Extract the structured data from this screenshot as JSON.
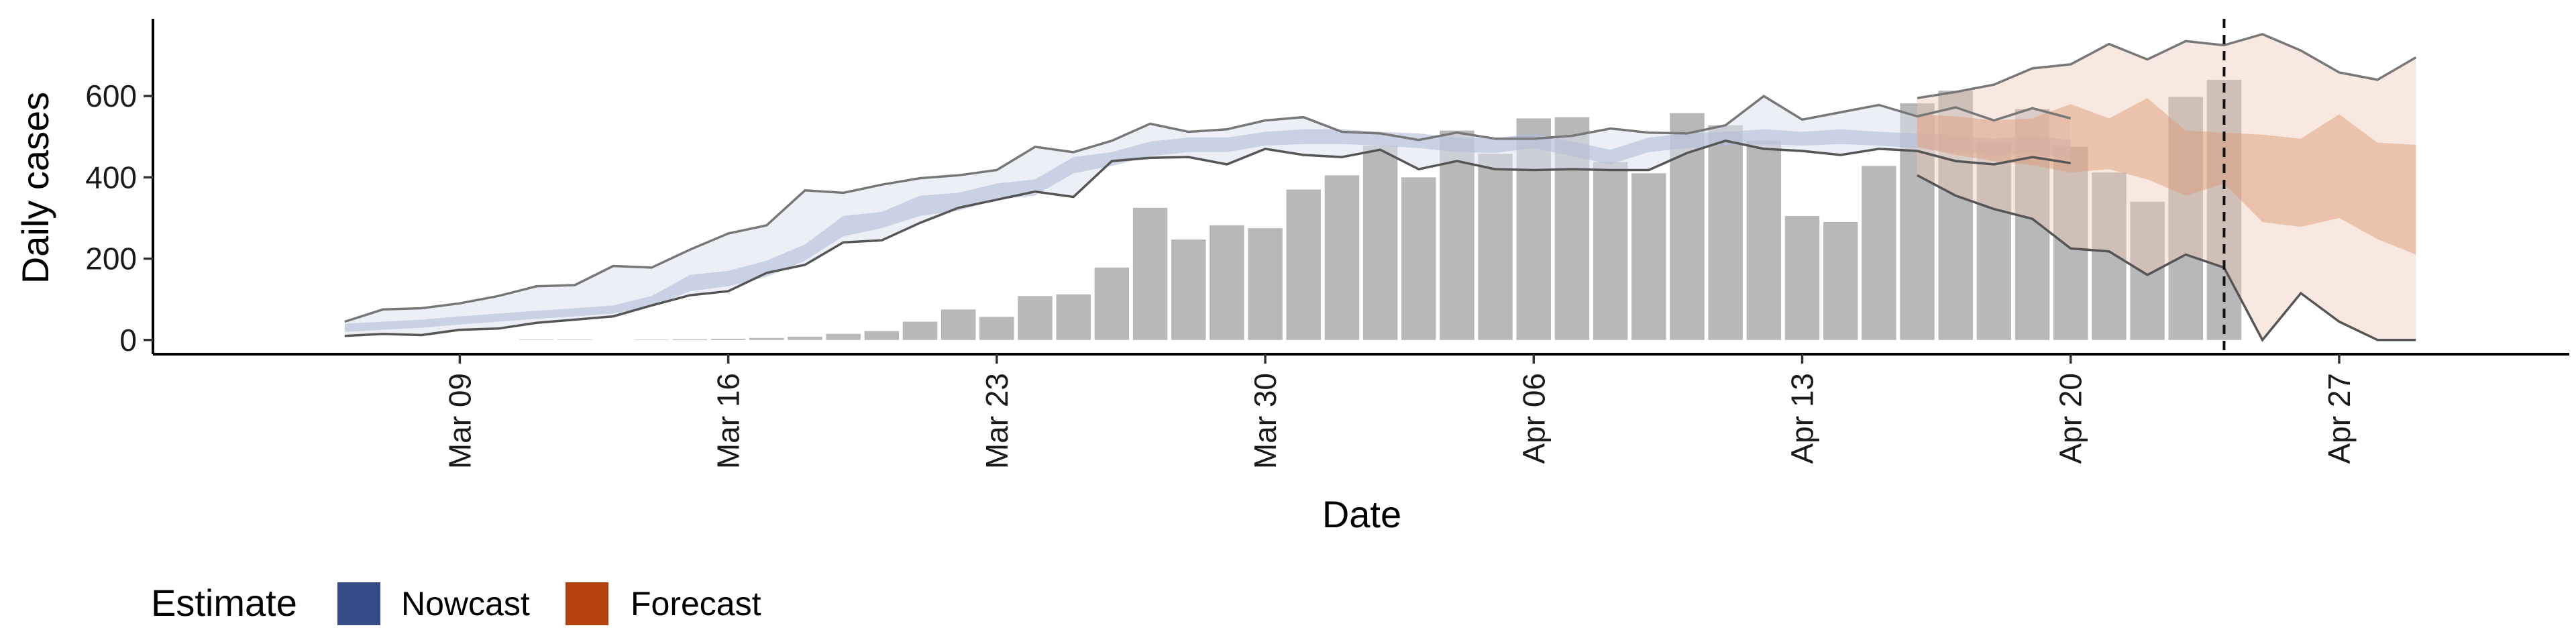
{
  "chart_data": {
    "type": "bar",
    "xlabel": "Date",
    "ylabel": "Daily cases",
    "ylim": [
      -35,
      790
    ],
    "yticks": [
      0,
      200,
      400,
      600
    ],
    "xlim": [
      "2020-03-01",
      "2020-05-03"
    ],
    "xticks": [
      {
        "date": "2020-03-09",
        "label": "Mar 09"
      },
      {
        "date": "2020-03-16",
        "label": "Mar 16"
      },
      {
        "date": "2020-03-23",
        "label": "Mar 23"
      },
      {
        "date": "2020-03-30",
        "label": "Mar 30"
      },
      {
        "date": "2020-04-06",
        "label": "Apr 06"
      },
      {
        "date": "2020-04-13",
        "label": "Apr 13"
      },
      {
        "date": "2020-04-20",
        "label": "Apr 20"
      },
      {
        "date": "2020-04-27",
        "label": "Apr 27"
      }
    ],
    "grid": false,
    "legend": {
      "position": "bottom-left",
      "title": "Estimate",
      "entries": [
        {
          "name": "Nowcast",
          "color": "#344b85"
        },
        {
          "name": "Forecast",
          "color": "#b5410e"
        }
      ]
    },
    "reported_cases": {
      "dates": [
        "2020-03-11",
        "2020-03-12",
        "2020-03-14",
        "2020-03-15",
        "2020-03-16",
        "2020-03-17",
        "2020-03-18",
        "2020-03-19",
        "2020-03-20",
        "2020-03-21",
        "2020-03-22",
        "2020-03-23",
        "2020-03-24",
        "2020-03-25",
        "2020-03-26",
        "2020-03-27",
        "2020-03-28",
        "2020-03-29",
        "2020-03-30",
        "2020-03-31",
        "2020-04-01",
        "2020-04-02",
        "2020-04-03",
        "2020-04-04",
        "2020-04-05",
        "2020-04-06",
        "2020-04-07",
        "2020-04-08",
        "2020-04-09",
        "2020-04-10",
        "2020-04-11",
        "2020-04-12",
        "2020-04-13",
        "2020-04-14",
        "2020-04-15",
        "2020-04-16",
        "2020-04-17",
        "2020-04-18",
        "2020-04-19",
        "2020-04-20",
        "2020-04-21",
        "2020-04-22",
        "2020-04-23",
        "2020-04-24"
      ],
      "values": [
        1,
        1,
        1,
        2,
        3,
        5,
        8,
        15,
        22,
        45,
        75,
        57,
        108,
        112,
        178,
        325,
        247,
        282,
        275,
        370,
        405,
        478,
        400,
        515,
        458,
        545,
        548,
        438,
        410,
        558,
        528,
        490,
        305,
        290,
        428,
        582,
        613,
        488,
        568,
        475,
        412,
        340,
        598,
        640
      ]
    },
    "estimate_start": "2020-03-06",
    "nowcast_end": "2020-04-15",
    "forecast_start": "2020-04-16",
    "forecast_end": "2020-04-29",
    "nowcast_split": "2020-04-24",
    "nowcast": {
      "median": [
        30,
        35,
        40,
        48,
        55,
        62,
        68,
        75,
        95,
        140,
        150,
        175,
        215,
        280,
        295,
        330,
        340,
        365,
        375,
        430,
        445,
        470,
        480,
        480,
        495,
        500,
        500,
        495,
        490,
        480,
        478,
        490,
        470,
        450,
        480,
        490,
        495,
        500,
        495,
        500,
        495,
        490,
        482,
        475,
        480,
        470
      ],
      "inner_lower": [
        20,
        25,
        30,
        38,
        45,
        52,
        58,
        65,
        82,
        120,
        132,
        155,
        195,
        255,
        275,
        305,
        318,
        345,
        355,
        410,
        428,
        452,
        462,
        462,
        478,
        482,
        482,
        478,
        472,
        462,
        460,
        472,
        452,
        432,
        462,
        472,
        478,
        482,
        478,
        482,
        478,
        472,
        462,
        455,
        458,
        448
      ],
      "inner_upper": [
        40,
        45,
        50,
        58,
        65,
        72,
        78,
        85,
        108,
        160,
        170,
        195,
        235,
        305,
        315,
        355,
        362,
        385,
        395,
        450,
        462,
        488,
        498,
        498,
        512,
        518,
        518,
        512,
        508,
        498,
        496,
        508,
        488,
        468,
        498,
        508,
        512,
        518,
        512,
        518,
        512,
        508,
        502,
        495,
        502,
        492
      ],
      "outer_lower": [
        10,
        15,
        12,
        25,
        28,
        42,
        50,
        58,
        85,
        110,
        120,
        165,
        185,
        240,
        245,
        288,
        325,
        345,
        365,
        352,
        440,
        448,
        450,
        432,
        470,
        455,
        450,
        468,
        420,
        440,
        420,
        418,
        420,
        418,
        418,
        460,
        490,
        470,
        465,
        455,
        470,
        465,
        440,
        432,
        450,
        435
      ],
      "outer_upper": [
        45,
        75,
        78,
        90,
        108,
        132,
        135,
        182,
        178,
        222,
        262,
        282,
        368,
        362,
        382,
        398,
        405,
        418,
        475,
        462,
        490,
        532,
        512,
        518,
        540,
        548,
        512,
        508,
        492,
        510,
        495,
        495,
        502,
        520,
        510,
        508,
        528,
        600,
        542,
        560,
        578,
        550,
        572,
        540,
        570,
        545
      ]
    },
    "forecast": {
      "median": [
        540,
        535,
        530,
        510,
        505,
        505,
        500,
        495,
        490,
        480,
        470,
        460,
        440,
        420
      ],
      "inner_lower": [
        475,
        455,
        440,
        430,
        412,
        420,
        395,
        355,
        385,
        290,
        278,
        300,
        248,
        210
      ],
      "inner_upper": [
        555,
        550,
        540,
        545,
        580,
        545,
        595,
        515,
        510,
        505,
        495,
        555,
        485,
        480
      ],
      "outer_lower": [
        405,
        355,
        322,
        298,
        225,
        218,
        160,
        210,
        178,
        0,
        115,
        45,
        0,
        0
      ],
      "outer_upper": [
        595,
        610,
        628,
        668,
        678,
        728,
        690,
        735,
        725,
        752,
        712,
        658,
        640,
        695
      ]
    }
  }
}
